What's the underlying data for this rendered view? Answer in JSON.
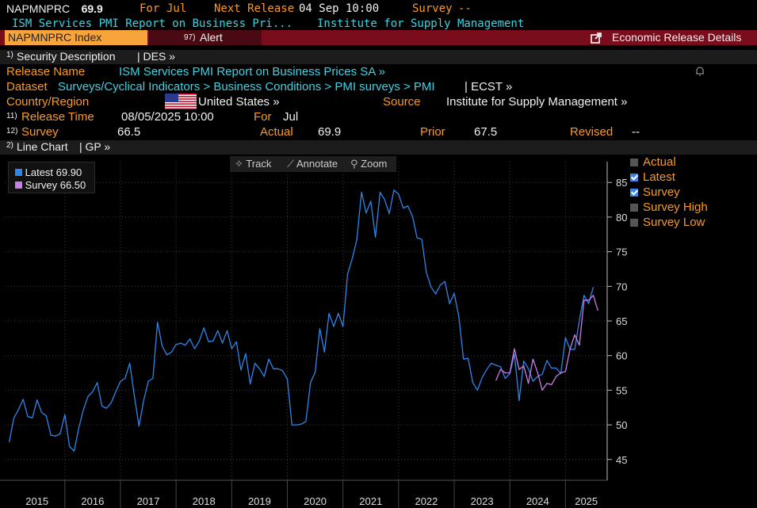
{
  "ticker": {
    "symbol": "NAPMNPRC",
    "value": "69.9",
    "for_label": "For",
    "for_value": "Jul",
    "next_label": "Next Release",
    "next_value": "04 Sep 10:00",
    "survey_label": "Survey",
    "survey_value": "--"
  },
  "subtitle": {
    "title": "ISM Services PMI Report on Business Pri...",
    "source": "Institute for Supply Management"
  },
  "toolbar": {
    "index_label": "NAPMNPRC Index",
    "alert_num": "97)",
    "alert_label": "Alert",
    "details_label": "Economic Release Details"
  },
  "sections": {
    "desc_num": "1)",
    "desc_label": "Security Description",
    "desc_code": "| DES »",
    "chart_num": "2)",
    "chart_label": "Line Chart",
    "chart_code": "| GP »"
  },
  "release": {
    "name_label": "Release Name",
    "name_value": "ISM Services PMI Report on Business Prices SA »",
    "dataset_label": "Dataset",
    "dataset_value": "Surveys/Cyclical Indicators > Business Conditions > PMI surveys > PMI",
    "dataset_code": "| ECST »",
    "country_label": "Country/Region",
    "country_value": "United States »",
    "source_label": "Source",
    "source_value": "Institute for Supply Management »",
    "time_num": "11)",
    "time_label": "Release Time",
    "time_value": "08/05/2025 10:00",
    "for_label": "For",
    "for_value": "Jul",
    "survey_num": "12)",
    "survey_label": "Survey",
    "survey_value": "66.5",
    "actual_label": "Actual",
    "actual_value": "69.9",
    "prior_label": "Prior",
    "prior_value": "67.5",
    "revised_label": "Revised",
    "revised_value": "--"
  },
  "chart_tools": {
    "track": "Track",
    "annotate": "Annotate",
    "zoom": "Zoom"
  },
  "legend": [
    {
      "name": "Latest",
      "value": "69.90",
      "color": "#2f86e8"
    },
    {
      "name": "Survey",
      "value": "66.50",
      "color": "#c77ee8"
    }
  ],
  "series_toggles": [
    {
      "label": "Actual",
      "checked": false
    },
    {
      "label": "Latest",
      "checked": true
    },
    {
      "label": "Survey",
      "checked": true
    },
    {
      "label": "Survey High",
      "checked": false
    },
    {
      "label": "Survey Low",
      "checked": false
    }
  ],
  "chart_data": {
    "type": "line",
    "title": "",
    "xlabel": "",
    "ylabel": "",
    "ylim": [
      42,
      88
    ],
    "xlim": [
      2014.92,
      2025.75
    ],
    "yticks": [
      45,
      50,
      55,
      60,
      65,
      70,
      75,
      80,
      85
    ],
    "xticks": [
      "2015",
      "2016",
      "2017",
      "2018",
      "2019",
      "2020",
      "2021",
      "2022",
      "2023",
      "2024",
      "2025"
    ],
    "grid": true,
    "series": [
      {
        "name": "Latest",
        "color": "#2f86e8",
        "start": [
          2015,
          1
        ],
        "values": [
          47.5,
          51.0,
          52.2,
          53.7,
          51.2,
          51.0,
          53.6,
          51.8,
          51.3,
          48.5,
          48.4,
          48.7,
          51.5,
          46.9,
          46.2,
          49.5,
          52.2,
          54.1,
          54.8,
          56.1,
          52.7,
          52.4,
          53.2,
          54.8,
          56.3,
          56.7,
          58.9,
          54.2,
          49.8,
          53.5,
          56.3,
          56.7,
          64.8,
          61.4,
          60.1,
          60.5,
          61.6,
          61.8,
          61.5,
          62.4,
          61.0,
          62.1,
          64.0,
          62.0,
          62.1,
          63.6,
          61.8,
          63.6,
          61.0,
          62.0,
          57.9,
          60.3,
          55.9,
          58.9,
          58.1,
          57.0,
          59.5,
          58.1,
          58.1,
          57.8,
          56.6,
          50.0,
          50.0,
          50.1,
          50.5,
          56.1,
          57.6,
          63.9,
          60.5,
          66.1,
          64.2,
          66.1,
          64.2,
          71.8,
          74.0,
          76.8,
          83.6,
          80.6,
          82.3,
          77.1,
          83.6,
          82.5,
          80.5,
          83.9,
          83.3,
          81.3,
          81.6,
          80.1,
          77.0,
          76.8,
          72.0,
          69.9,
          68.9,
          70.2,
          70.7,
          67.5,
          69.0,
          65.6,
          59.5,
          59.6,
          56.1,
          55.0,
          56.8,
          58.0,
          58.9,
          58.6,
          58.4,
          56.7,
          57.4,
          60.2,
          53.5,
          59.2,
          58.1,
          56.3,
          57.0,
          57.3,
          59.3,
          58.2,
          58.2,
          57.4,
          62.6,
          60.9,
          60.9,
          65.1,
          68.7,
          67.5,
          69.9
        ]
      },
      {
        "name": "Survey",
        "color": "#c77ee8",
        "start": [
          2023,
          10
        ],
        "values": [
          56.4,
          58.0,
          57.5,
          57.5,
          61.0,
          58.0,
          58.5,
          56.0,
          59.5,
          57.5,
          55.0,
          56.0,
          55.8,
          57.0,
          57.5,
          57.7,
          61.0,
          63.0,
          61.5,
          68.0,
          68.0,
          68.7,
          66.5
        ]
      }
    ]
  }
}
